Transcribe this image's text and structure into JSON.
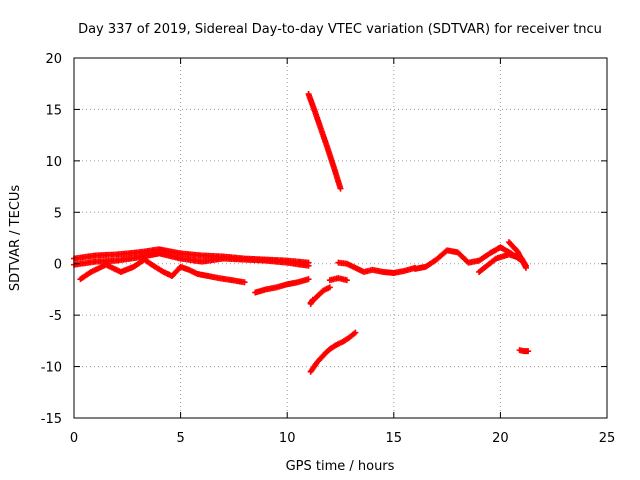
{
  "chart_data": {
    "type": "scatter",
    "title": "Day 337 of 2019, Sidereal Day-to-day VTEC variation (SDTVAR) for receiver tncu",
    "xlabel": "GPS time / hours",
    "ylabel": "SDTVAR / TECUs",
    "xlim": [
      0,
      25
    ],
    "ylim": [
      -15,
      20
    ],
    "xticks": [
      0,
      5,
      10,
      15,
      20,
      25
    ],
    "yticks": [
      -15,
      -10,
      -5,
      0,
      5,
      10,
      15,
      20
    ],
    "grid": true,
    "marker": "+",
    "color": "#ff0000",
    "series": [
      {
        "name": "main-band-a",
        "x": [
          0.0,
          1.0,
          2.0,
          3.0,
          4.0,
          5.0,
          6.0,
          7.0,
          8.0,
          9.0,
          10.0,
          11.0
        ],
        "y": [
          0.5,
          0.8,
          0.9,
          1.1,
          1.4,
          1.0,
          0.8,
          0.7,
          0.5,
          0.4,
          0.3,
          0.1
        ]
      },
      {
        "name": "main-band-b",
        "x": [
          0.0,
          1.0,
          2.0,
          3.0,
          4.0,
          5.0,
          6.0,
          7.0,
          8.0,
          9.0,
          10.0,
          11.0
        ],
        "y": [
          -0.1,
          0.2,
          0.3,
          0.6,
          1.0,
          0.5,
          0.2,
          0.5,
          0.4,
          0.3,
          0.1,
          -0.2
        ]
      },
      {
        "name": "dip-arcs",
        "x": [
          0.3,
          0.8,
          1.5,
          2.2,
          2.8,
          3.3,
          3.8,
          4.2,
          4.6,
          5.0,
          5.4,
          5.8,
          6.3,
          6.8,
          7.4,
          8.0
        ],
        "y": [
          -1.5,
          -0.8,
          -0.1,
          -0.8,
          -0.3,
          0.4,
          -0.3,
          -0.8,
          -1.2,
          -0.3,
          -0.6,
          -1.0,
          -1.2,
          -1.4,
          -1.6,
          -1.8
        ]
      },
      {
        "name": "descending-arc",
        "x": [
          8.5,
          9.0,
          9.5,
          10.0,
          10.5,
          11.0
        ],
        "y": [
          -2.8,
          -2.5,
          -2.3,
          -2.0,
          -1.8,
          -1.5
        ]
      },
      {
        "name": "steep-positive",
        "x": [
          11.0,
          11.3,
          11.6,
          11.9,
          12.2,
          12.5
        ],
        "y": [
          16.5,
          14.8,
          13.0,
          11.2,
          9.3,
          7.3
        ]
      },
      {
        "name": "recovery-negative",
        "x": [
          11.1,
          11.4,
          11.7,
          12.0,
          12.3,
          12.6,
          12.9,
          13.2
        ],
        "y": [
          -10.5,
          -9.6,
          -8.9,
          -8.3,
          -7.9,
          -7.6,
          -7.2,
          -6.7
        ]
      },
      {
        "name": "short-dip",
        "x": [
          11.1,
          11.4,
          11.7,
          12.0
        ],
        "y": [
          -3.8,
          -3.2,
          -2.6,
          -2.3
        ]
      },
      {
        "name": "mid-segment",
        "x": [
          12.0,
          12.4,
          12.8
        ],
        "y": [
          -1.6,
          -1.4,
          -1.6
        ]
      },
      {
        "name": "mid-cluster",
        "x": [
          12.4,
          12.8,
          13.2,
          13.6,
          14.0,
          14.5,
          15.0,
          15.5,
          16.0
        ],
        "y": [
          0.1,
          0.0,
          -0.4,
          -0.8,
          -0.6,
          -0.8,
          -0.9,
          -0.7,
          -0.4
        ]
      },
      {
        "name": "late-wave",
        "x": [
          16.0,
          16.5,
          17.0,
          17.5,
          18.0,
          18.5,
          19.0,
          19.5,
          20.0,
          20.5,
          21.0
        ],
        "y": [
          -0.5,
          -0.3,
          0.4,
          1.3,
          1.1,
          0.1,
          0.3,
          1.0,
          1.6,
          1.0,
          0.3
        ]
      },
      {
        "name": "late-spike",
        "x": [
          20.4,
          20.8,
          21.2
        ],
        "y": [
          2.1,
          1.2,
          -0.4
        ]
      },
      {
        "name": "late-tail",
        "x": [
          19.0,
          19.8,
          20.4,
          21.0,
          21.2
        ],
        "y": [
          -0.8,
          0.5,
          0.9,
          0.5,
          -0.2
        ]
      },
      {
        "name": "isolated-negative",
        "x": [
          20.9,
          21.1,
          21.3
        ],
        "y": [
          -8.4,
          -8.5,
          -8.5
        ]
      },
      {
        "name": "isolated-dip",
        "x": [
          11.1,
          11.2
        ],
        "y": [
          -3.9,
          -3.5
        ]
      }
    ]
  }
}
